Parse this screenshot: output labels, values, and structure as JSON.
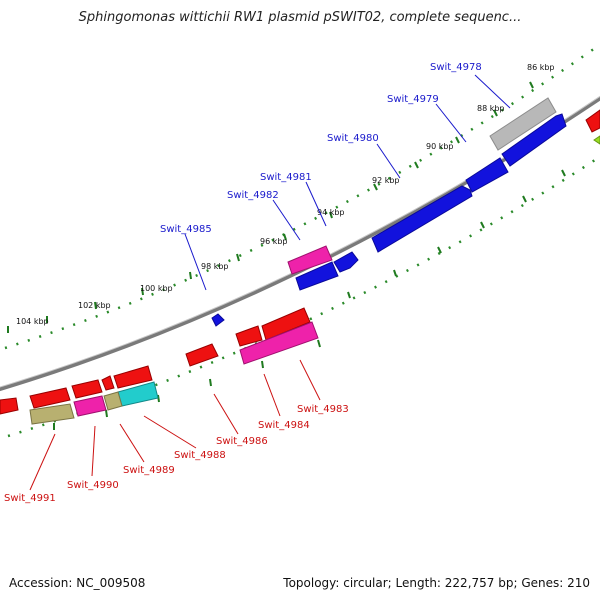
{
  "title": "Sphingomonas wittichii RW1 plasmid pSWIT02, complete sequenc...",
  "footer": {
    "accession": "Accession: NC_009508",
    "summary": "Topology: circular; Length: 222,757 bp; Genes: 210"
  },
  "scale_labels": [
    "86 kbp",
    "88 kbp",
    "90 kbp",
    "92 kbp",
    "94 kbp",
    "96 kbp",
    "98 kbp",
    "100 kbp",
    "102 kbp",
    "104 kbp"
  ],
  "forward_labels": [
    "Swit_4978",
    "Swit_4979",
    "Swit_4980",
    "Swit_4981",
    "Swit_4982",
    "Swit_4985"
  ],
  "reverse_labels": [
    "Swit_4983",
    "Swit_4984",
    "Swit_4986",
    "Swit_4988",
    "Swit_4989",
    "Swit_4990",
    "Swit_4991"
  ],
  "colors": {
    "forward_cds": "#1010dd",
    "reverse_cds": "#ee1111",
    "pseudo_gray": "#bbbbbb",
    "magenta": "#ee22aa",
    "olive": "#b8b070",
    "cyan": "#22cccc",
    "green_ticks": "#228822",
    "backbone": "#888888"
  }
}
